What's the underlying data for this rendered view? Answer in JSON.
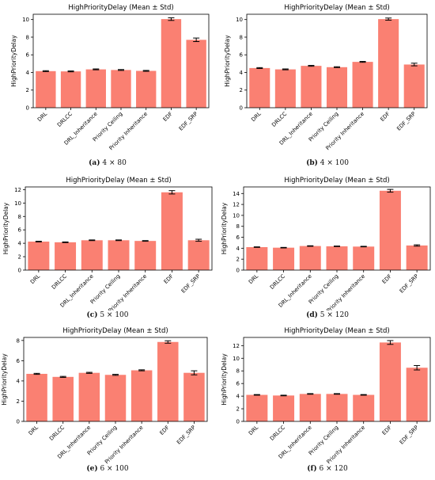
{
  "colors": {
    "bar": "#fa8072",
    "axis": "#000000",
    "errorbar": "#000000"
  },
  "chart_data": [
    {
      "type": "bar",
      "title": "HighPriorityDelay (Mean ± Std)",
      "ylabel": "HighPriorityDelay",
      "xlabel": "",
      "categories": [
        "DRL",
        "DRLCC",
        "DRL_Inheritance",
        "Priority Ceiling",
        "Priority Inheritance",
        "EDF",
        "EDF_SRP"
      ],
      "values": [
        4.15,
        4.12,
        4.35,
        4.28,
        4.18,
        10.05,
        7.7
      ],
      "errors": [
        0.05,
        0.05,
        0.05,
        0.05,
        0.05,
        0.15,
        0.2
      ],
      "ylim": [
        0,
        10.6
      ],
      "yticks": [
        0,
        2,
        4,
        6,
        8,
        10
      ],
      "grid": false,
      "caption_tag": "(a)",
      "caption_text": "4 × 80"
    },
    {
      "type": "bar",
      "title": "HighPriorityDelay (Mean ± Std)",
      "ylabel": "HighPriorityDelay",
      "xlabel": "",
      "categories": [
        "DRL",
        "DRLCC",
        "DRL_Inheritance",
        "Priority Ceiling",
        "Priority Inheritance",
        "EDF",
        "EDF_SRP"
      ],
      "values": [
        4.5,
        4.35,
        4.75,
        4.6,
        5.2,
        10.05,
        4.9
      ],
      "errors": [
        0.05,
        0.05,
        0.05,
        0.05,
        0.05,
        0.12,
        0.15
      ],
      "ylim": [
        0,
        10.6
      ],
      "yticks": [
        0,
        2,
        4,
        6,
        8,
        10
      ],
      "grid": false,
      "caption_tag": "(b)",
      "caption_text": "4 × 100"
    },
    {
      "type": "bar",
      "title": "HighPriorityDelay (Mean ± Std)",
      "ylabel": "HighPriorityDelay",
      "xlabel": "",
      "categories": [
        "DRL",
        "DRLCC",
        "DRL_Inheritance",
        "Priority Ceiling",
        "Priority Inheritance",
        "EDF",
        "EDF_SRP"
      ],
      "values": [
        4.25,
        4.15,
        4.45,
        4.45,
        4.35,
        11.6,
        4.45
      ],
      "errors": [
        0.05,
        0.05,
        0.05,
        0.05,
        0.05,
        0.25,
        0.15
      ],
      "ylim": [
        0,
        12.4
      ],
      "yticks": [
        0,
        2,
        4,
        6,
        8,
        10,
        12
      ],
      "grid": false,
      "caption_tag": "(c)",
      "caption_text": "5 × 100"
    },
    {
      "type": "bar",
      "title": "HighPriorityDelay (Mean ± Std)",
      "ylabel": "HighPriorityDelay",
      "xlabel": "",
      "categories": [
        "DRL",
        "DRLCC",
        "DRL_Inheritance",
        "Priority Ceiling",
        "Priority Inheritance",
        "EDF",
        "EDF_SRP"
      ],
      "values": [
        4.2,
        4.1,
        4.4,
        4.35,
        4.3,
        14.5,
        4.5
      ],
      "errors": [
        0.05,
        0.05,
        0.05,
        0.05,
        0.05,
        0.25,
        0.12
      ],
      "ylim": [
        0,
        15.2
      ],
      "yticks": [
        0,
        2,
        4,
        6,
        8,
        10,
        12,
        14
      ],
      "grid": false,
      "caption_tag": "(d)",
      "caption_text": "5 × 120"
    },
    {
      "type": "bar",
      "title": "HighPriorityDelay (Mean ± Std)",
      "ylabel": "HighPriorityDelay",
      "xlabel": "",
      "categories": [
        "DRL",
        "DRLCC",
        "DRL_Inheritance",
        "Priority Ceiling",
        "Priority Inheritance",
        "EDF",
        "EDF_SRP"
      ],
      "values": [
        4.7,
        4.4,
        4.8,
        4.6,
        5.05,
        7.85,
        4.8
      ],
      "errors": [
        0.05,
        0.05,
        0.05,
        0.05,
        0.05,
        0.12,
        0.2
      ],
      "ylim": [
        0,
        8.3
      ],
      "yticks": [
        0,
        2,
        4,
        6,
        8
      ],
      "grid": false,
      "caption_tag": "(e)",
      "caption_text": "6 × 100"
    },
    {
      "type": "bar",
      "title": "HighPriorityDelay (Mean ± Std)",
      "ylabel": "HighPriorityDelay",
      "xlabel": "",
      "categories": [
        "DRL",
        "DRLCC",
        "DRL_Inheritance",
        "Priority Ceiling",
        "Priority Inheritance",
        "EDF",
        "EDF_SRP"
      ],
      "values": [
        4.2,
        4.1,
        4.35,
        4.35,
        4.2,
        12.5,
        8.5
      ],
      "errors": [
        0.05,
        0.05,
        0.05,
        0.05,
        0.05,
        0.3,
        0.35
      ],
      "ylim": [
        0,
        13.3
      ],
      "yticks": [
        0,
        2,
        4,
        6,
        8,
        10,
        12
      ],
      "grid": false,
      "caption_tag": "(f)",
      "caption_text": "6 × 120"
    }
  ]
}
